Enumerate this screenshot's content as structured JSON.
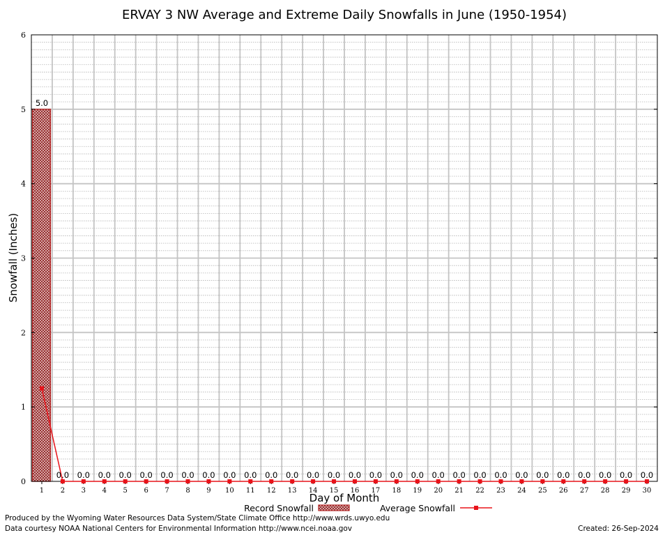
{
  "chart_data": {
    "type": "bar",
    "title": "ERVAY 3 NW Average and Extreme Daily Snowfalls in June (1950-1954)",
    "xlabel": "Day of Month",
    "ylabel": "Snowfall (Inches)",
    "ylim": [
      0,
      6
    ],
    "yticks": [
      "0",
      "1",
      "2",
      "3",
      "4",
      "5",
      "6"
    ],
    "categories": [
      "1",
      "2",
      "3",
      "4",
      "5",
      "6",
      "7",
      "8",
      "9",
      "10",
      "11",
      "12",
      "13",
      "14",
      "15",
      "16",
      "17",
      "18",
      "19",
      "20",
      "21",
      "22",
      "23",
      "24",
      "25",
      "26",
      "27",
      "28",
      "29",
      "30"
    ],
    "series": [
      {
        "name": "Record Snowfall",
        "kind": "bar",
        "color": "#b22222",
        "values": [
          5.0,
          0,
          0,
          0,
          0,
          0,
          0,
          0,
          0,
          0,
          0,
          0,
          0,
          0,
          0,
          0,
          0,
          0,
          0,
          0,
          0,
          0,
          0,
          0,
          0,
          0,
          0,
          0,
          0,
          0
        ],
        "labels": [
          "5.0",
          "0.0",
          "0.0",
          "0.0",
          "0.0",
          "0.0",
          "0.0",
          "0.0",
          "0.0",
          "0.0",
          "0.0",
          "0.0",
          "0.0",
          "0.0",
          "0.0",
          "0.0",
          "0.0",
          "0.0",
          "0.0",
          "0.0",
          "0.0",
          "0.0",
          "0.0",
          "0.0",
          "0.0",
          "0.0",
          "0.0",
          "0.0",
          "0.0",
          "0.0"
        ]
      },
      {
        "name": "Average Snowfall",
        "kind": "line",
        "color": "#e8131a",
        "values": [
          1.25,
          0,
          0,
          0,
          0,
          0,
          0,
          0,
          0,
          0,
          0,
          0,
          0,
          0,
          0,
          0,
          0,
          0,
          0,
          0,
          0,
          0,
          0,
          0,
          0,
          0,
          0,
          0,
          0,
          0
        ]
      }
    ],
    "grid": true,
    "legend": "bottom-center"
  },
  "footer": {
    "credit_line1": "Produced by the Wyoming Water Resources Data System/State Climate Office http://www.wrds.uwyo.edu",
    "credit_line2": "Data courtesy NOAA National Centers for Environmental Information http://www.ncei.noaa.gov",
    "created": "Created:  26-Sep-2024"
  }
}
